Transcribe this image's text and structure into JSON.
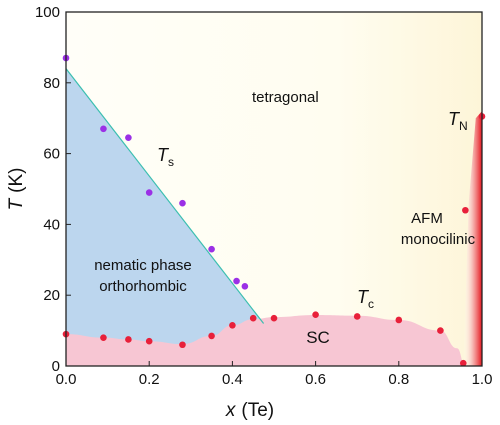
{
  "chart_data": {
    "type": "scatter",
    "xlabel_var": "x",
    "xlabel_unit": "(Te)",
    "ylabel_var": "T",
    "ylabel_unit": "(K)",
    "xlim": [
      0.0,
      1.0
    ],
    "ylim": [
      0,
      100
    ],
    "xticks": [
      "0.0",
      "0.2",
      "0.4",
      "0.6",
      "0.8",
      "1.0"
    ],
    "yticks": [
      "0",
      "20",
      "40",
      "60",
      "80",
      "100"
    ],
    "grid": false,
    "series": [
      {
        "color": "#9b30e6",
        "x": [
          0.0,
          0.09,
          0.15,
          0.2,
          0.28,
          0.35,
          0.41,
          0.43
        ],
        "y": [
          87,
          67,
          64.5,
          49,
          46,
          33,
          24,
          22.5
        ]
      },
      {
        "color": "#e8203a",
        "x": [
          0.0,
          0.09,
          0.15,
          0.2,
          0.28,
          0.35,
          0.4,
          0.45,
          0.5,
          0.6,
          0.7,
          0.8,
          0.9,
          0.955,
          0.96,
          1.0
        ],
        "y": [
          9,
          8,
          7.5,
          7,
          6,
          8.5,
          11.5,
          13.5,
          13.5,
          14.5,
          14,
          13,
          10,
          0.8,
          44,
          70.5
        ]
      }
    ],
    "regions": {
      "tetragonal": "tetragonal",
      "nematic": [
        "nematic phase",
        "orthorhombic"
      ],
      "sc": "SC",
      "afm": [
        "AFM",
        "monocilinic"
      ]
    },
    "annotations": {
      "ts_main": "T",
      "ts_sub": "s",
      "tc_main": "T",
      "tc_sub": "c",
      "tn_main": "T",
      "tn_sub": "N"
    },
    "colors": {
      "nematic_fill": "#bcd6ee",
      "sc_fill": "#f7c6d3",
      "bg_warm": "#fefcea",
      "afm_red": "#e5141c",
      "ts_line": "#3bbfb0"
    }
  }
}
